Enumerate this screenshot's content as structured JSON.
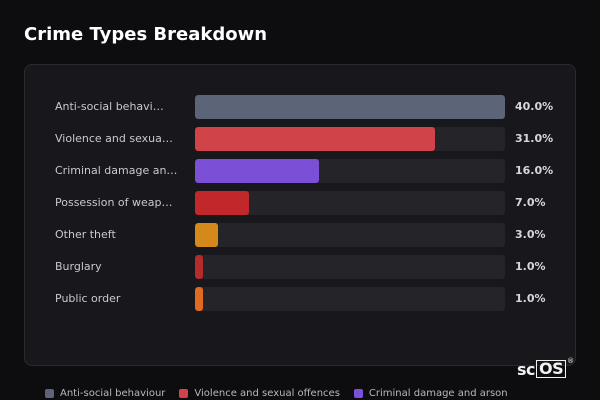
{
  "header": {
    "title": "Crime Types Breakdown"
  },
  "chart_data": {
    "type": "bar",
    "orientation": "horizontal",
    "title": "Crime Types Breakdown",
    "categories": [
      "Anti-social behavi…",
      "Violence and sexua…",
      "Criminal damage an…",
      "Possession of weap…",
      "Other theft",
      "Burglary",
      "Public order"
    ],
    "values": [
      40.0,
      31.0,
      16.0,
      7.0,
      3.0,
      1.0,
      1.0
    ],
    "value_labels": [
      "40.0%",
      "31.0%",
      "16.0%",
      "7.0%",
      "3.0%",
      "1.0%",
      "1.0%"
    ],
    "colors": [
      "#5c6478",
      "#d04348",
      "#7b4fd6",
      "#c0282c",
      "#d4891a",
      "#b52a2a",
      "#e06a22"
    ],
    "xlim": [
      0,
      40
    ],
    "grid": false
  },
  "legend": {
    "items": [
      {
        "label": "Anti-social behaviour",
        "color": "#5c6478"
      },
      {
        "label": "Violence and sexual offences",
        "color": "#d04348"
      },
      {
        "label": "Criminal damage and arson",
        "color": "#7b4fd6"
      }
    ]
  },
  "logo": {
    "text_sc": "sc",
    "text_os": "OS",
    "reg": "®"
  }
}
